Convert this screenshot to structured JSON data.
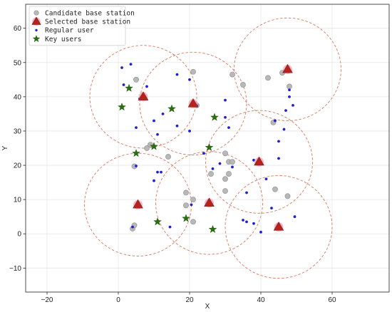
{
  "chart_data": {
    "type": "scatter",
    "title": "",
    "xlabel": "X",
    "ylabel": "Y",
    "xlim": [
      -26,
      76
    ],
    "ylim": [
      -17,
      67
    ],
    "xticks": [
      -20,
      0,
      20,
      40,
      60
    ],
    "yticks": [
      -10,
      0,
      10,
      20,
      30,
      40,
      50,
      60
    ],
    "grid": true,
    "legend_position": "top-left",
    "coverage_radius": 15,
    "colors": {
      "candidate_fill": "#b8b8b8",
      "candidate_edge": "#8c8c8c",
      "selected": "#b5241c",
      "selected_halo": "#f4a6c4",
      "regular": "#1f1fd6",
      "key": "#2a6e12",
      "circle": "#d9775c"
    },
    "series": [
      {
        "name": "Candidate base station",
        "marker": "circle",
        "points": [
          [
            4,
            1.5
          ],
          [
            4.5,
            2.5
          ],
          [
            4.5,
            19.7
          ],
          [
            5,
            45
          ],
          [
            8,
            25
          ],
          [
            9,
            26
          ],
          [
            14,
            22.5
          ],
          [
            19,
            12
          ],
          [
            19,
            8.3
          ],
          [
            21,
            3.5
          ],
          [
            21,
            10
          ],
          [
            21,
            47.3
          ],
          [
            22,
            37.5
          ],
          [
            26,
            17.5
          ],
          [
            30,
            12.5
          ],
          [
            30,
            16
          ],
          [
            30,
            23.5
          ],
          [
            31,
            17.5
          ],
          [
            31,
            21
          ],
          [
            32,
            46.5
          ],
          [
            32,
            21
          ],
          [
            35,
            43.5
          ],
          [
            42,
            45.5
          ],
          [
            43.5,
            32.5
          ],
          [
            44,
            13
          ],
          [
            46,
            47
          ],
          [
            47.5,
            11
          ],
          [
            48,
            43
          ]
        ]
      },
      {
        "name": "Selected base station",
        "marker": "triangle",
        "points": [
          [
            47.5,
            48
          ],
          [
            7,
            40
          ],
          [
            21,
            38
          ],
          [
            39.5,
            21
          ],
          [
            5.5,
            8.5
          ],
          [
            25.5,
            9
          ],
          [
            45,
            2
          ]
        ]
      },
      {
        "name": "Regular user",
        "marker": "dot",
        "points": [
          [
            1,
            48.5
          ],
          [
            1.5,
            43.5
          ],
          [
            3.5,
            49.5
          ],
          [
            4,
            2
          ],
          [
            5,
            31
          ],
          [
            5,
            19.8
          ],
          [
            6,
            39.5
          ],
          [
            8,
            43
          ],
          [
            10,
            15.5
          ],
          [
            10,
            33
          ],
          [
            11,
            18
          ],
          [
            11,
            29
          ],
          [
            12,
            18
          ],
          [
            12.5,
            35
          ],
          [
            14.5,
            2
          ],
          [
            16.5,
            31.5
          ],
          [
            16.5,
            46.5
          ],
          [
            20,
            30
          ],
          [
            20,
            45
          ],
          [
            20.5,
            8.5
          ],
          [
            22,
            37.5
          ],
          [
            24,
            23.5
          ],
          [
            26.5,
            19
          ],
          [
            28.5,
            20.5
          ],
          [
            30,
            34
          ],
          [
            30,
            39
          ],
          [
            31,
            31
          ],
          [
            32,
            19.5
          ],
          [
            35,
            4
          ],
          [
            36,
            3.5
          ],
          [
            36,
            12
          ],
          [
            38,
            21.5
          ],
          [
            38,
            3
          ],
          [
            40,
            0.5
          ],
          [
            41.5,
            16
          ],
          [
            43,
            7.5
          ],
          [
            44,
            33
          ],
          [
            45,
            22
          ],
          [
            45,
            27
          ],
          [
            46.5,
            30.5
          ],
          [
            47,
            36
          ],
          [
            48,
            40
          ],
          [
            48,
            42
          ],
          [
            49,
            37.5
          ],
          [
            49.5,
            5
          ]
        ]
      },
      {
        "name": "Key users",
        "marker": "star",
        "points": [
          [
            1,
            37
          ],
          [
            3,
            42.5
          ],
          [
            5,
            23.5
          ],
          [
            10,
            25.5
          ],
          [
            11,
            3.5
          ],
          [
            15,
            36.5
          ],
          [
            19,
            4.5
          ],
          [
            25.5,
            25.2
          ],
          [
            26.5,
            1.3
          ],
          [
            27,
            34
          ]
        ]
      }
    ],
    "coverage_circles": [
      [
        47.5,
        48
      ],
      [
        7,
        40
      ],
      [
        21,
        38
      ],
      [
        39.5,
        21
      ],
      [
        5.5,
        8.5
      ],
      [
        25.5,
        9
      ],
      [
        45,
        2
      ]
    ]
  }
}
